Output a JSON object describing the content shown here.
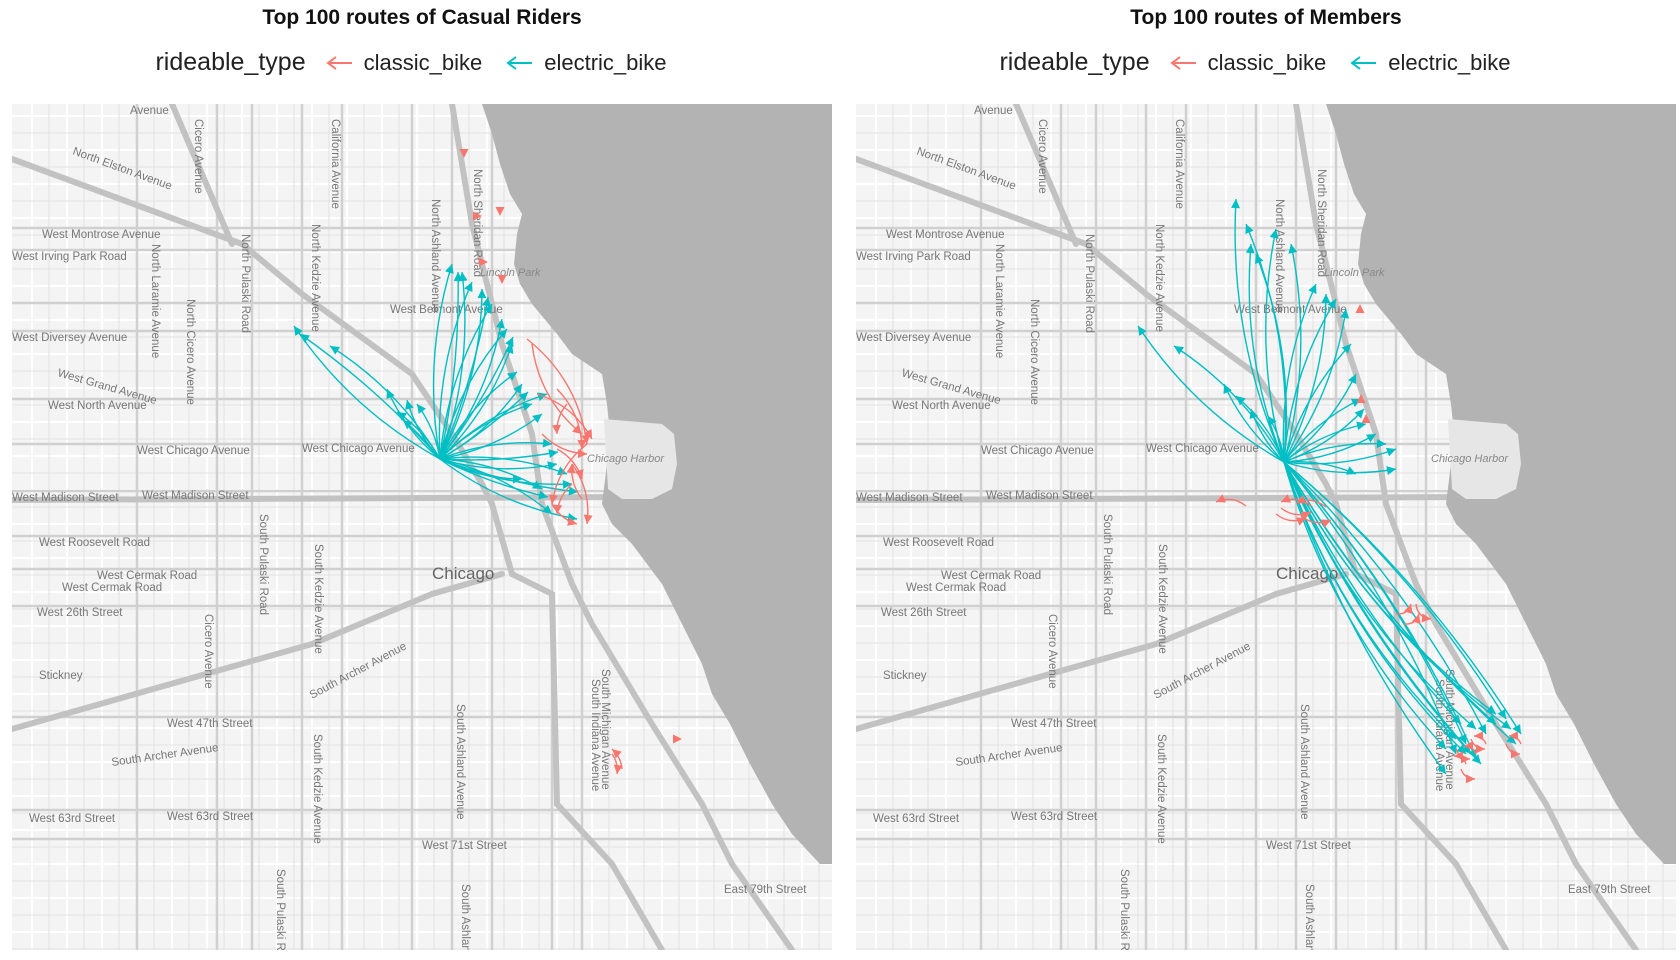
{
  "legend": {
    "title": "rideable_type",
    "classic": "classic_bike",
    "electric": "electric_bike"
  },
  "colors": {
    "classic": "#F8766D",
    "electric": "#00BFC4"
  },
  "panels": [
    {
      "title": "Top 100 routes of Casual Riders"
    },
    {
      "title": "Top 100 routes of Members"
    }
  ],
  "map_labels": {
    "city": "Chicago",
    "lincoln_park": "Lincoln Park",
    "chicago_harbor": "Chicago Harbor",
    "streets": [
      "North Elston Avenue",
      "West Montrose Avenue",
      "West Irving Park Road",
      "West Belmont Avenue",
      "West Diversey Avenue",
      "West Grand Avenue",
      "West North Avenue",
      "West Chicago Avenue",
      "West Chicago Avenue",
      "West Madison Street",
      "West Madison Street",
      "West Roosevelt Road",
      "West Cermak Road",
      "West Cermak Road",
      "West 26th Street",
      "Stickney",
      "West 47th Street",
      "South Archer Avenue",
      "South Archer Avenue",
      "West 63rd Street",
      "West 63rd Street",
      "West 71st Street",
      "East 79th Street",
      "North Laramie Avenue",
      "North Pulaski Road",
      "North Kedzie Avenue",
      "North Ashland Avenue",
      "North Sheridan Road",
      "California Avenue",
      "Cicero Avenue",
      "North Cicero Avenue",
      "South Pulaski Road",
      "South Kedzie Avenue",
      "Cicero Avenue",
      "South Kedzie Avenue",
      "South Ashland Avenue",
      "South Michigan Avenue",
      "South Indiana Avenue",
      "Avenue",
      "South Pulaski Road",
      "South Ashland Avenue"
    ]
  }
}
